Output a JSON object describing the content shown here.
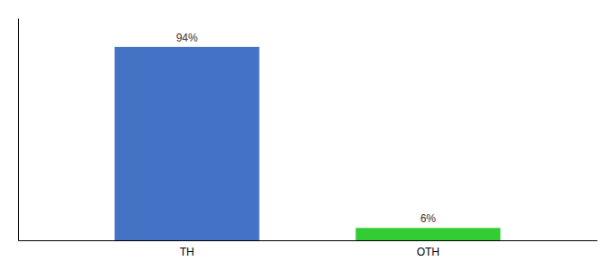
{
  "chart_data": {
    "type": "bar",
    "categories": [
      "TH",
      "OTH"
    ],
    "values": [
      94,
      6
    ],
    "value_labels": [
      "94%",
      "6%"
    ],
    "data_labels": true,
    "colors": [
      "#4472c4",
      "#33cc33"
    ],
    "ylim": [
      0,
      108
    ],
    "tick_labels": "x",
    "grid": false
  }
}
